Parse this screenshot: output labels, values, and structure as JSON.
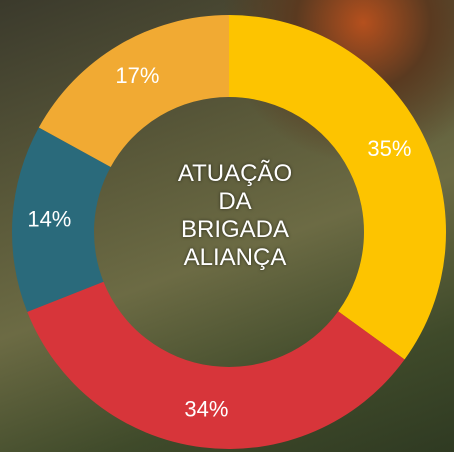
{
  "chart_data": {
    "type": "pie",
    "title": "ATUAÇÃO DA BRIGADA ALIANÇA",
    "categories": [
      null,
      null,
      null,
      null
    ],
    "values": [
      35,
      34,
      14,
      17
    ],
    "value_labels": [
      "35%",
      "34%",
      "14%",
      "17%"
    ],
    "colors": [
      "#fdc400",
      "#d7353a",
      "#2a6a7b",
      "#f1aa33"
    ]
  }
}
